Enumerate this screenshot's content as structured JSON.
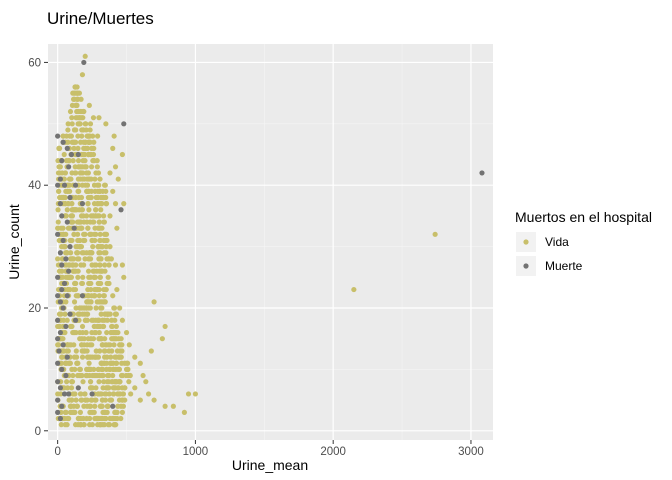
{
  "chart_data": {
    "type": "scatter",
    "title": "Urine/Muertes",
    "xlabel": "Urine_mean",
    "ylabel": "Urine_count",
    "xlim": [
      -70,
      3160
    ],
    "ylim": [
      -1.5,
      63
    ],
    "x_ticks": [
      0,
      1000,
      2000,
      3000
    ],
    "x_tick_labels": [
      "0",
      "1000",
      "2000",
      "3000"
    ],
    "y_ticks": [
      0,
      20,
      40,
      60
    ],
    "y_tick_labels": [
      "0",
      "20",
      "40",
      "60"
    ],
    "grid": true,
    "legend": {
      "title": "Muertos en el hospital",
      "position": "right",
      "entries": [
        "Vida",
        "Muerte"
      ]
    },
    "series": [
      {
        "name": "Vida",
        "color": "#c8bf6a",
        "cluster": {
          "description_of_mass": "dense cloud",
          "x_range": [
            0,
            500
          ],
          "y_range": [
            1,
            56
          ]
        },
        "points": [
          [
            200,
            61
          ],
          [
            180,
            58
          ],
          [
            110,
            55
          ],
          [
            140,
            55
          ],
          [
            170,
            54
          ],
          [
            230,
            53
          ],
          [
            260,
            51
          ],
          [
            300,
            51
          ],
          [
            350,
            50
          ],
          [
            290,
            48
          ],
          [
            410,
            48
          ],
          [
            400,
            46
          ],
          [
            470,
            45
          ],
          [
            420,
            43
          ],
          [
            380,
            42
          ],
          [
            440,
            41
          ],
          [
            400,
            39
          ],
          [
            420,
            37
          ],
          [
            480,
            37
          ],
          [
            380,
            35
          ],
          [
            430,
            33
          ],
          [
            380,
            30
          ],
          [
            390,
            28
          ],
          [
            420,
            27
          ],
          [
            470,
            27
          ],
          [
            480,
            25
          ],
          [
            430,
            23
          ],
          [
            400,
            22
          ],
          [
            450,
            20
          ],
          [
            470,
            18
          ],
          [
            500,
            16
          ],
          [
            520,
            14
          ],
          [
            560,
            12
          ],
          [
            600,
            11
          ],
          [
            620,
            9
          ],
          [
            640,
            8
          ],
          [
            560,
            7
          ],
          [
            660,
            6
          ],
          [
            600,
            5
          ],
          [
            700,
            21
          ],
          [
            780,
            17
          ],
          [
            760,
            15
          ],
          [
            680,
            13
          ],
          [
            500,
            10
          ],
          [
            530,
            6
          ],
          [
            700,
            5
          ],
          [
            780,
            4
          ],
          [
            840,
            4
          ],
          [
            920,
            3
          ],
          [
            950,
            6
          ],
          [
            1000,
            6
          ],
          [
            470,
            3
          ],
          [
            430,
            3
          ],
          [
            380,
            2
          ],
          [
            300,
            2
          ],
          [
            250,
            3
          ],
          [
            150,
            2
          ],
          [
            80,
            2
          ],
          [
            2150,
            23
          ],
          [
            2740,
            32
          ]
        ]
      },
      {
        "name": "Muerte",
        "color": "#737373",
        "points": [
          [
            190,
            60
          ],
          [
            480,
            50
          ],
          [
            0,
            48
          ],
          [
            40,
            47
          ],
          [
            70,
            46
          ],
          [
            100,
            45
          ],
          [
            30,
            44
          ],
          [
            150,
            45
          ],
          [
            80,
            43
          ],
          [
            20,
            41
          ],
          [
            0,
            40
          ],
          [
            50,
            40
          ],
          [
            130,
            40
          ],
          [
            90,
            38
          ],
          [
            20,
            37
          ],
          [
            180,
            37
          ],
          [
            460,
            36
          ],
          [
            30,
            35
          ],
          [
            70,
            34
          ],
          [
            120,
            33
          ],
          [
            0,
            32
          ],
          [
            40,
            31
          ],
          [
            90,
            30
          ],
          [
            20,
            29
          ],
          [
            60,
            28
          ],
          [
            30,
            27
          ],
          [
            80,
            26
          ],
          [
            0,
            25
          ],
          [
            50,
            24
          ],
          [
            30,
            23
          ],
          [
            0,
            22
          ],
          [
            70,
            22
          ],
          [
            180,
            22
          ],
          [
            20,
            21
          ],
          [
            40,
            20
          ],
          [
            90,
            19
          ],
          [
            0,
            18
          ],
          [
            130,
            18
          ],
          [
            60,
            17
          ],
          [
            20,
            16
          ],
          [
            0,
            15
          ],
          [
            40,
            14
          ],
          [
            10,
            13
          ],
          [
            70,
            12
          ],
          [
            0,
            11
          ],
          [
            30,
            10
          ],
          [
            60,
            9
          ],
          [
            0,
            8
          ],
          [
            20,
            7
          ],
          [
            50,
            6
          ],
          [
            80,
            6
          ],
          [
            0,
            5
          ],
          [
            30,
            4
          ],
          [
            0,
            3
          ],
          [
            20,
            2
          ],
          [
            400,
            4
          ],
          [
            250,
            6
          ],
          [
            150,
            7
          ],
          [
            3080,
            42
          ]
        ]
      }
    ]
  }
}
